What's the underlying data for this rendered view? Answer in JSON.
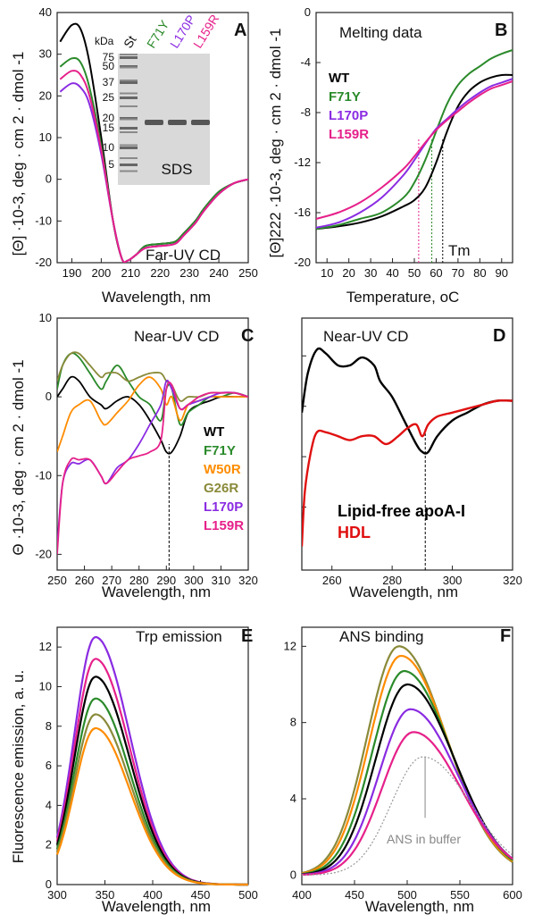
{
  "chart_data": [
    {
      "panel": "A",
      "type": "line",
      "title": "Far-UV CD",
      "xlabel": "Wavelength, nm",
      "ylabel": "[Θ] ·10-3, deg · cm 2 · dmol -1",
      "xlim": [
        185,
        250
      ],
      "ylim": [
        -20,
        40
      ],
      "xticks": [
        190,
        200,
        210,
        220,
        230,
        240,
        250
      ],
      "yticks": [
        -20,
        -10,
        0,
        10,
        20,
        30,
        40
      ],
      "series": [
        {
          "name": "WT",
          "color": "#000000",
          "x": [
            186,
            190,
            193,
            196,
            200,
            204,
            207,
            209,
            212,
            215,
            220,
            225,
            228,
            232,
            235,
            240,
            245,
            250
          ],
          "y": [
            33,
            37,
            36,
            28,
            10,
            -10,
            -19,
            -19.5,
            -18,
            -16,
            -15.5,
            -15,
            -13,
            -10,
            -7,
            -3,
            -1,
            0
          ]
        },
        {
          "name": "F71Y",
          "color": "#2a8a2a",
          "x": [
            186,
            190,
            193,
            196,
            200,
            204,
            207,
            209,
            212,
            215,
            220,
            225,
            228,
            232,
            235,
            240,
            245,
            250
          ],
          "y": [
            27,
            29,
            28,
            22,
            8,
            -10,
            -19,
            -19.5,
            -18,
            -16,
            -15.5,
            -15,
            -13,
            -10,
            -7,
            -3,
            -1,
            0
          ]
        },
        {
          "name": "L170P",
          "color": "#8a2be2",
          "x": [
            186,
            190,
            193,
            196,
            200,
            204,
            207,
            209,
            212,
            215,
            220,
            225,
            228,
            232,
            235,
            240,
            245,
            250
          ],
          "y": [
            21,
            23,
            22,
            18,
            6,
            -10,
            -19,
            -19.5,
            -18,
            -16.5,
            -16,
            -15.5,
            -13.5,
            -10.5,
            -7.5,
            -3.5,
            -1,
            0
          ]
        },
        {
          "name": "L159R",
          "color": "#e6208a",
          "x": [
            186,
            190,
            193,
            196,
            200,
            204,
            207,
            209,
            212,
            215,
            220,
            225,
            228,
            232,
            235,
            240,
            245,
            250
          ],
          "y": [
            24,
            26,
            25,
            20,
            7,
            -10,
            -19,
            -19.5,
            -18,
            -16.5,
            -16,
            -15.5,
            -13.5,
            -10.5,
            -7.5,
            -3.5,
            -1,
            0
          ]
        }
      ],
      "inset": {
        "title": "SDS",
        "unit_label": "kDa",
        "lane_labels": [
          {
            "text": "St",
            "color": "#111111"
          },
          {
            "text": "F71Y",
            "color": "#2a8a2a"
          },
          {
            "text": "L170P",
            "color": "#8a2be2"
          },
          {
            "text": "L159R",
            "color": "#e6208a"
          }
        ],
        "markers": [
          "75",
          "50",
          "37",
          "25",
          "20",
          "15",
          "10",
          "5"
        ]
      }
    },
    {
      "panel": "B",
      "type": "line",
      "title": "Melting data",
      "xlabel": "Temperature, oC",
      "ylabel": "[Θ]222 ·10-3, deg · cm 2 · dmol -1",
      "xlim": [
        5,
        95
      ],
      "ylim": [
        -20,
        0
      ],
      "xticks": [
        10,
        20,
        30,
        40,
        50,
        60,
        70,
        80,
        90
      ],
      "yticks": [
        -20,
        -16,
        -12,
        -8,
        -4,
        0
      ],
      "annotation": "Tm",
      "tm_lines": [
        {
          "x": 52,
          "color": "#e6208a"
        },
        {
          "x": 58,
          "color": "#2a8a2a"
        },
        {
          "x": 63,
          "color": "#000000"
        }
      ],
      "series": [
        {
          "name": "WT",
          "color": "#000000",
          "x": [
            5,
            15,
            25,
            35,
            45,
            50,
            55,
            60,
            65,
            70,
            75,
            80,
            85,
            90,
            95
          ],
          "y": [
            -17.3,
            -17.1,
            -16.8,
            -16.3,
            -15.5,
            -15,
            -14,
            -12,
            -9.5,
            -7.5,
            -6.3,
            -5.6,
            -5.2,
            -5,
            -5
          ]
        },
        {
          "name": "F71Y",
          "color": "#2a8a2a",
          "x": [
            5,
            15,
            25,
            35,
            45,
            50,
            55,
            60,
            65,
            70,
            75,
            80,
            85,
            90,
            95
          ],
          "y": [
            -17.3,
            -17,
            -16.5,
            -16,
            -14.8,
            -13.6,
            -11.8,
            -9.5,
            -7.3,
            -5.8,
            -4.9,
            -4.3,
            -3.7,
            -3.3,
            -3
          ]
        },
        {
          "name": "L170P",
          "color": "#8a2be2",
          "x": [
            5,
            15,
            25,
            35,
            45,
            50,
            55,
            60,
            65,
            70,
            75,
            80,
            85,
            90,
            95
          ],
          "y": [
            -17.2,
            -16.8,
            -16,
            -14.8,
            -13,
            -11.8,
            -10.5,
            -9.3,
            -8.5,
            -7.7,
            -7,
            -6.4,
            -5.9,
            -5.6,
            -5.3
          ]
        },
        {
          "name": "L159R",
          "color": "#e6208a",
          "x": [
            5,
            15,
            25,
            35,
            45,
            50,
            55,
            60,
            65,
            70,
            75,
            80,
            85,
            90,
            95
          ],
          "y": [
            -16.5,
            -16,
            -15.2,
            -14,
            -12.5,
            -11.5,
            -10.4,
            -9.4,
            -8.6,
            -7.9,
            -7.2,
            -6.6,
            -6.1,
            -5.8,
            -5.5
          ]
        }
      ]
    },
    {
      "panel": "C",
      "type": "line",
      "title": "Near-UV CD",
      "xlabel": "Wavelength, nm",
      "ylabel": "Θ ·10-3, deg · cm 2 · dmol -1",
      "xlim": [
        250,
        320
      ],
      "ylim": [
        -22,
        10
      ],
      "xticks": [
        250,
        260,
        270,
        280,
        290,
        300,
        310,
        320
      ],
      "yticks": [
        -20,
        -10,
        0,
        10
      ],
      "marker_x": 291,
      "series": [
        {
          "name": "WT",
          "color": "#000000",
          "x": [
            250,
            252,
            255,
            258,
            262,
            266,
            268,
            272,
            276,
            280,
            284,
            288,
            290,
            292,
            295,
            298,
            302,
            306,
            310,
            315,
            320
          ],
          "y": [
            0,
            1,
            2.5,
            2,
            0,
            -1,
            -1.5,
            -0.5,
            0,
            -1,
            -3,
            -5.5,
            -7,
            -7,
            -5,
            -2,
            -1,
            -0.5,
            0,
            0,
            0
          ]
        },
        {
          "name": "F71Y",
          "color": "#2a8a2a",
          "x": [
            250,
            252,
            255,
            258,
            262,
            266,
            268,
            272,
            276,
            280,
            284,
            288,
            290,
            292,
            295,
            298,
            302,
            306,
            310,
            315,
            320
          ],
          "y": [
            1,
            4,
            5.5,
            5,
            3,
            1,
            2,
            4,
            2,
            0,
            -1,
            -3,
            1,
            1,
            -3.5,
            -2,
            -1,
            0,
            0,
            0.5,
            0
          ]
        },
        {
          "name": "W50R",
          "color": "#ff8c00",
          "x": [
            250,
            252,
            255,
            258,
            262,
            266,
            268,
            272,
            276,
            280,
            284,
            288,
            290,
            292,
            295,
            298,
            302,
            306,
            310,
            315,
            320
          ],
          "y": [
            -7,
            -5,
            -2,
            -1,
            -0.5,
            -3,
            -3.5,
            -2,
            -0.5,
            1.5,
            2.5,
            1,
            -1,
            0,
            -3,
            -1,
            -0.5,
            0,
            0,
            0,
            0
          ]
        },
        {
          "name": "G26R",
          "color": "#8a8a3a",
          "x": [
            250,
            252,
            255,
            258,
            262,
            266,
            268,
            272,
            276,
            280,
            284,
            288,
            290,
            292,
            295,
            298,
            302,
            306,
            310,
            315,
            320
          ],
          "y": [
            2,
            4,
            5.5,
            5.5,
            4,
            2.5,
            3,
            3,
            2,
            2.5,
            3,
            3,
            2,
            1.5,
            -0.5,
            0,
            0,
            0.5,
            0.5,
            0.5,
            0
          ]
        },
        {
          "name": "L170P",
          "color": "#8a2be2",
          "x": [
            250,
            252,
            255,
            258,
            262,
            266,
            268,
            272,
            276,
            280,
            284,
            288,
            290,
            292,
            295,
            298,
            302,
            306,
            310,
            315,
            320
          ],
          "y": [
            -19,
            -11,
            -8.5,
            -8.5,
            -8,
            -10,
            -11,
            -9,
            -8,
            -6,
            -3.5,
            -1,
            2,
            1,
            -1.5,
            -1,
            -0.5,
            0,
            0.5,
            0.5,
            0
          ]
        },
        {
          "name": "L159R",
          "color": "#e6208a",
          "x": [
            250,
            252,
            255,
            258,
            262,
            266,
            268,
            272,
            276,
            280,
            284,
            288,
            290,
            292,
            295,
            298,
            302,
            306,
            310,
            315,
            320
          ],
          "y": [
            -20,
            -11,
            -8,
            -8,
            -8,
            -10,
            -11,
            -9.5,
            -8,
            -7.5,
            -7,
            -5.5,
            1,
            1.5,
            -1.5,
            -1,
            0,
            0.5,
            0.5,
            0.5,
            0
          ]
        }
      ]
    },
    {
      "panel": "D",
      "type": "line",
      "title": "Near-UV CD",
      "xlabel": "Wavelength, nm",
      "xlim": [
        250,
        320
      ],
      "ylim": [
        -22,
        10
      ],
      "xticks": [
        260,
        280,
        300,
        320
      ],
      "marker_x": 291,
      "series": [
        {
          "name": "Lipid-free apoA-I",
          "color": "#000000",
          "x": [
            250,
            252,
            255,
            258,
            262,
            266,
            270,
            274,
            276,
            280,
            284,
            288,
            290,
            292,
            295,
            300,
            305,
            310,
            315,
            320
          ],
          "y": [
            -2,
            3,
            6,
            5.5,
            4,
            4,
            5,
            4,
            2,
            0,
            -3,
            -6,
            -7,
            -7,
            -5,
            -3,
            -2,
            -1,
            -0.5,
            -0.5
          ]
        },
        {
          "name": "HDL",
          "color": "#e01010",
          "x": [
            250,
            251,
            253,
            255,
            258,
            262,
            266,
            270,
            274,
            278,
            282,
            285,
            288,
            290,
            292,
            295,
            300,
            305,
            310,
            315,
            320
          ],
          "y": [
            -19,
            -12,
            -7,
            -4.5,
            -4.5,
            -5,
            -5.5,
            -5,
            -5,
            -6,
            -5,
            -4,
            -3.5,
            -5,
            -3.5,
            -2.5,
            -2,
            -1.5,
            -1,
            -0.5,
            -0.5
          ]
        }
      ]
    },
    {
      "panel": "E",
      "type": "line",
      "title": "Trp emission",
      "xlabel": "Wavelength, nm",
      "ylabel": "Fluorescence emission, a. u.",
      "xlim": [
        300,
        500
      ],
      "ylim": [
        0,
        13
      ],
      "xticks": [
        300,
        350,
        400,
        450,
        500
      ],
      "yticks": [
        0,
        2,
        4,
        6,
        8,
        10,
        12
      ],
      "series": [
        {
          "name": "L170P",
          "color": "#8a2be2",
          "peak": 12.5
        },
        {
          "name": "L159R",
          "color": "#e6208a",
          "peak": 11.4
        },
        {
          "name": "WT",
          "color": "#000000",
          "peak": 10.5
        },
        {
          "name": "F71Y",
          "color": "#2a8a2a",
          "peak": 9.4
        },
        {
          "name": "G26R",
          "color": "#8a8a3a",
          "peak": 8.6
        },
        {
          "name": "W50R",
          "color": "#ff8c00",
          "peak": 7.9
        }
      ]
    },
    {
      "panel": "F",
      "type": "line",
      "title": "ANS binding",
      "xlabel": "Wavelength, nm",
      "xlim": [
        400,
        600
      ],
      "ylim": [
        -0.5,
        13
      ],
      "xticks": [
        400,
        450,
        500,
        550,
        600
      ],
      "yticks": [
        0,
        4,
        8,
        12
      ],
      "annotation": "ANS in buffer",
      "series": [
        {
          "name": "G26R",
          "color": "#8a8a3a",
          "peak": 12.0,
          "center": 492
        },
        {
          "name": "W50R",
          "color": "#ff8c00",
          "peak": 11.5,
          "center": 494
        },
        {
          "name": "F71Y",
          "color": "#2a8a2a",
          "peak": 10.7,
          "center": 497
        },
        {
          "name": "WT",
          "color": "#000000",
          "peak": 10.0,
          "center": 500
        },
        {
          "name": "L170P",
          "color": "#8a2be2",
          "peak": 8.7,
          "center": 503
        },
        {
          "name": "L159R",
          "color": "#e6208a",
          "peak": 7.5,
          "center": 506
        },
        {
          "name": "ANS in buffer",
          "color": "#999999",
          "peak": 6.2,
          "center": 515
        }
      ]
    }
  ]
}
